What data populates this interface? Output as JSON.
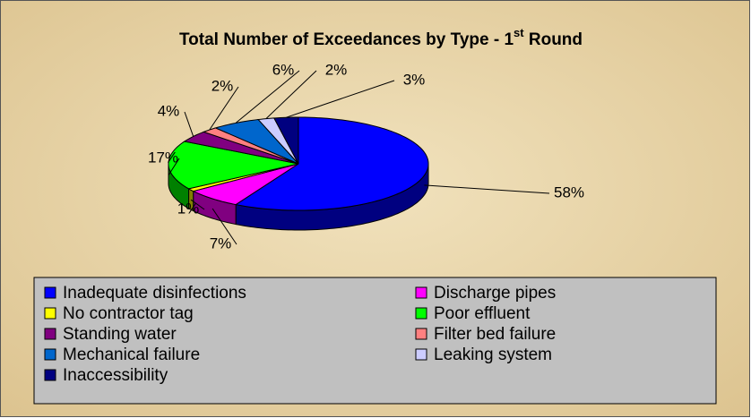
{
  "chart_data": {
    "type": "pie3d",
    "title_parts": [
      "Total Number of Exceedances by Type - 1",
      "st",
      " Round"
    ],
    "categories": [
      "Inadequate disinfections",
      "Discharge pipes",
      "No contractor tag",
      "Poor effluent",
      "Standing water",
      "Filter bed failure",
      "Mechanical failure",
      "Leaking system",
      "Inaccessibility"
    ],
    "values": [
      58,
      7,
      1,
      17,
      4,
      2,
      6,
      2,
      3
    ],
    "value_labels": [
      "58%",
      "7%",
      "1%",
      "17%",
      "4%",
      "2%",
      "6%",
      "2%",
      "3%"
    ],
    "colors": [
      "#0000ff",
      "#ff00ff",
      "#ffff00",
      "#00ff00",
      "#800080",
      "#ff8080",
      "#0066cc",
      "#ccccff",
      "#000080"
    ],
    "legend": "bottom"
  }
}
